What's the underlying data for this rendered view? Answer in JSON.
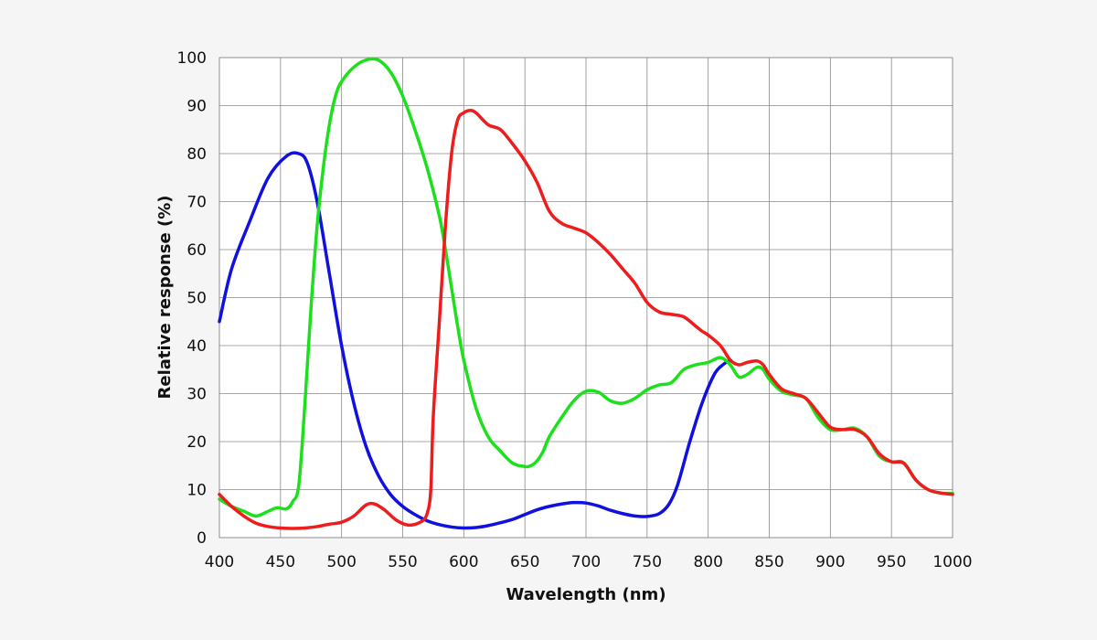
{
  "chart_data": {
    "type": "line",
    "title": "",
    "xlabel": "Wavelength (nm)",
    "ylabel": "Relative response (%)",
    "xlim": [
      400,
      1000
    ],
    "ylim": [
      0,
      100
    ],
    "x_ticks": [
      "400",
      "450",
      "500",
      "550",
      "600",
      "650",
      "700",
      "750",
      "800",
      "850",
      "900",
      "950",
      "1000"
    ],
    "y_ticks": [
      "0",
      "10",
      "20",
      "30",
      "40",
      "50",
      "60",
      "70",
      "80",
      "90",
      "100"
    ],
    "grid": true,
    "legend": "none",
    "series": [
      {
        "color": "#1010e0",
        "x": [
          400,
          410,
          425,
          440,
          455,
          465,
          472,
          480,
          490,
          500,
          510,
          520,
          530,
          540,
          550,
          560,
          570,
          580,
          590,
          600,
          610,
          620,
          630,
          640,
          650,
          660,
          670,
          680,
          690,
          700,
          710,
          720,
          730,
          740,
          750,
          760,
          768,
          775,
          785,
          795,
          805,
          812,
          818
        ],
        "y": [
          45,
          56,
          66,
          75,
          79.5,
          80,
          78,
          70,
          55,
          40,
          28,
          19,
          13,
          9,
          6.5,
          4.8,
          3.5,
          2.7,
          2.2,
          2.0,
          2.1,
          2.5,
          3.1,
          3.8,
          4.8,
          5.8,
          6.5,
          7.0,
          7.3,
          7.2,
          6.6,
          5.7,
          5.0,
          4.5,
          4.4,
          5.0,
          7.0,
          11,
          20,
          28,
          34,
          36,
          37
        ]
      },
      {
        "color": "#1de01d",
        "x": [
          400,
          410,
          420,
          430,
          440,
          447,
          455,
          460,
          465,
          470,
          475,
          480,
          485,
          490,
          495,
          500,
          510,
          520,
          530,
          540,
          550,
          560,
          570,
          580,
          585,
          590,
          595,
          600,
          610,
          620,
          630,
          640,
          650,
          655,
          660,
          665,
          670,
          680,
          690,
          700,
          710,
          720,
          730,
          740,
          750,
          760,
          770,
          780,
          790,
          800,
          810,
          818,
          825,
          832,
          840,
          845,
          850,
          860,
          870,
          880,
          890,
          900,
          910,
          920,
          930,
          940,
          950,
          960,
          970,
          980,
          990,
          1000
        ],
        "y": [
          8,
          6.5,
          5.5,
          4.5,
          5.5,
          6.2,
          6,
          7.5,
          11,
          28,
          48,
          65,
          77,
          86,
          92,
          95,
          98,
          99.5,
          99.5,
          97,
          92,
          85,
          77,
          67,
          60,
          52,
          44,
          37,
          27,
          21,
          18,
          15.5,
          14.8,
          15,
          16,
          18,
          21,
          25,
          28.5,
          30.5,
          30.3,
          28.5,
          28,
          29,
          30.8,
          31.8,
          32.3,
          35,
          36,
          36.5,
          37.5,
          36,
          33.5,
          34,
          35.5,
          35,
          33,
          30.5,
          29.7,
          29,
          25,
          22.5,
          22.5,
          22.8,
          21,
          17,
          15.8,
          15.6,
          12,
          10,
          9.3,
          9.2
        ]
      },
      {
        "color": "#ee1c1c",
        "x": [
          400,
          410,
          420,
          430,
          440,
          450,
          460,
          470,
          480,
          490,
          500,
          510,
          520,
          527,
          535,
          545,
          555,
          565,
          570,
          573,
          575,
          580,
          585,
          590,
          595,
          600,
          605,
          610,
          620,
          630,
          640,
          650,
          660,
          670,
          680,
          690,
          700,
          710,
          720,
          730,
          740,
          750,
          760,
          770,
          780,
          790,
          795,
          800,
          810,
          818,
          825,
          832,
          840,
          845,
          850,
          860,
          870,
          880,
          890,
          900,
          910,
          920,
          930,
          940,
          950,
          960,
          970,
          980,
          990,
          1000
        ],
        "y": [
          9,
          6.5,
          4.5,
          3,
          2.3,
          2.0,
          1.9,
          2.0,
          2.3,
          2.8,
          3.2,
          4.5,
          6.8,
          7,
          5.8,
          3.6,
          2.6,
          3.3,
          5,
          10,
          25,
          45,
          65,
          80,
          87,
          88.5,
          89,
          88.5,
          86,
          85,
          82,
          78.5,
          74,
          68,
          65.5,
          64.5,
          63.5,
          61.5,
          59,
          56,
          53,
          49,
          47,
          46.5,
          46,
          44,
          43,
          42.2,
          40,
          37,
          36,
          36.5,
          36.8,
          36,
          34,
          31,
          30,
          29,
          26,
          23,
          22.5,
          22.5,
          21,
          17.5,
          15.8,
          15.5,
          12,
          10,
          9.3,
          9
        ]
      }
    ]
  }
}
